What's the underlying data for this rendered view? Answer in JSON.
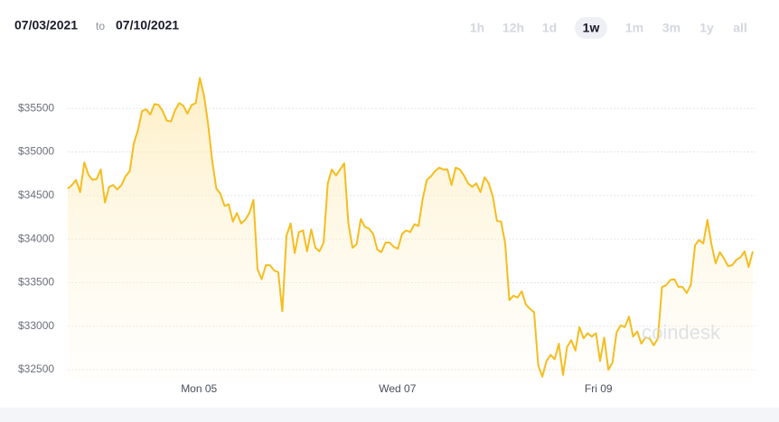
{
  "header": {
    "from": "07/03/2021",
    "to_word": "to",
    "to": "07/10/2021"
  },
  "ranges": [
    "1h",
    "12h",
    "1d",
    "1w",
    "1m",
    "3m",
    "1y",
    "all"
  ],
  "selected_range": "1w",
  "watermark": "coindesk",
  "chart_data": {
    "type": "line",
    "color": "#f5bd1f",
    "values": [
      34580,
      34620,
      34680,
      34540,
      34880,
      34740,
      34680,
      34690,
      34800,
      34420,
      34600,
      34620,
      34570,
      34620,
      34720,
      34780,
      35100,
      35250,
      35470,
      35490,
      35430,
      35550,
      35540,
      35470,
      35360,
      35350,
      35480,
      35560,
      35530,
      35440,
      35540,
      35560,
      35850,
      35650,
      35320,
      34900,
      34580,
      34520,
      34380,
      34400,
      34200,
      34300,
      34180,
      34220,
      34300,
      34450,
      33650,
      33540,
      33700,
      33700,
      33640,
      33620,
      33170,
      34040,
      34180,
      33840,
      34080,
      34100,
      33860,
      34110,
      33900,
      33860,
      33960,
      34640,
      34800,
      34730,
      34800,
      34870,
      34180,
      33900,
      33940,
      34230,
      34140,
      34120,
      34060,
      33880,
      33850,
      33960,
      33960,
      33910,
      33890,
      34060,
      34100,
      34080,
      34170,
      34150,
      34460,
      34680,
      34720,
      34780,
      34820,
      34800,
      34800,
      34620,
      34820,
      34800,
      34730,
      34640,
      34600,
      34640,
      34540,
      34710,
      34640,
      34490,
      34210,
      34200,
      33950,
      33300,
      33350,
      33330,
      33400,
      33250,
      33200,
      33160,
      32550,
      32420,
      32600,
      32670,
      32620,
      32800,
      32440,
      32760,
      32840,
      32720,
      32990,
      32860,
      32920,
      32880,
      32920,
      32600,
      32870,
      32500,
      32580,
      32930,
      33010,
      32990,
      33110,
      32880,
      32940,
      32800,
      32870,
      32860,
      32780,
      32860,
      33450,
      33470,
      33530,
      33540,
      33450,
      33450,
      33380,
      33480,
      33930,
      33990,
      33950,
      34220,
      33940,
      33720,
      33850,
      33780,
      33690,
      33700,
      33760,
      33790,
      33860,
      33680,
      33860
    ],
    "xlim": [
      0,
      166
    ],
    "xticks": [
      {
        "value": 31.8,
        "label": "Mon 05"
      },
      {
        "value": 79.9,
        "label": "Wed 07"
      },
      {
        "value": 128.6,
        "label": "Fri 09"
      }
    ],
    "ylim": [
      32400,
      35900
    ],
    "yticks": [
      {
        "value": 32500,
        "label": "$32500"
      },
      {
        "value": 33000,
        "label": "$33000"
      },
      {
        "value": 33500,
        "label": "$33500"
      },
      {
        "value": 34000,
        "label": "$34000"
      },
      {
        "value": 34500,
        "label": "$34500"
      },
      {
        "value": 35000,
        "label": "$35000"
      },
      {
        "value": 35500,
        "label": "$35500"
      }
    ],
    "grid": true
  }
}
